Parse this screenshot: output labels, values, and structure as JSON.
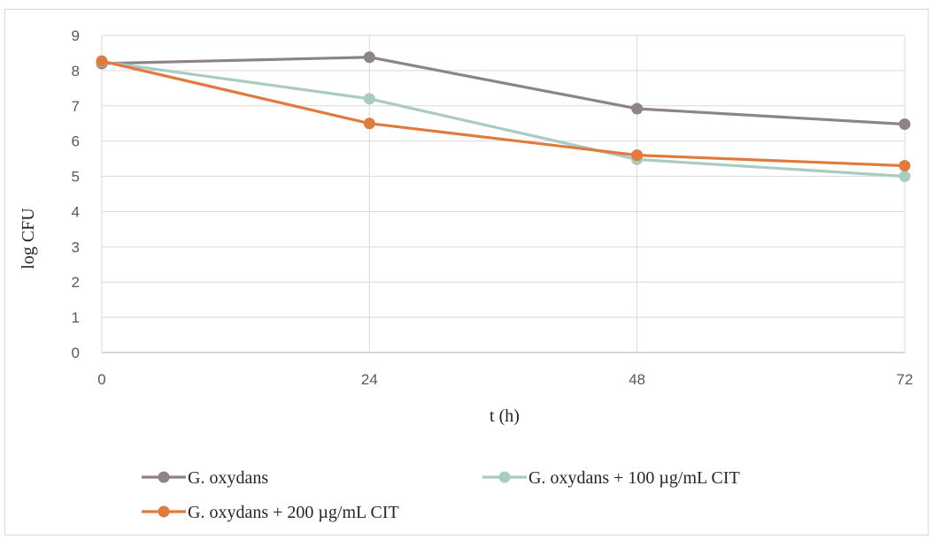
{
  "chart_data": {
    "type": "line",
    "xlabel": "t (h)",
    "ylabel": "log CFU",
    "x": [
      0,
      24,
      48,
      72
    ],
    "x_tick_labels": [
      "0",
      "24",
      "48",
      "72"
    ],
    "y_tick_labels": [
      "0",
      "1",
      "2",
      "3",
      "4",
      "5",
      "6",
      "7",
      "8",
      "9"
    ],
    "ylim": [
      0,
      9
    ],
    "grid": "horizontal",
    "legend_position": "bottom",
    "series": [
      {
        "name": "G. oxydans",
        "color": "#8e8386",
        "values": [
          8.2,
          8.38,
          6.92,
          6.48
        ]
      },
      {
        "name": "G. oxydans + 100 µg/mL CIT",
        "color": "#a9cbc1",
        "values": [
          8.25,
          7.2,
          5.48,
          5.0
        ]
      },
      {
        "name": "G. oxydans + 200 µg/mL CIT",
        "color": "#e07b3f",
        "values": [
          8.27,
          6.5,
          5.6,
          5.3
        ]
      }
    ]
  }
}
